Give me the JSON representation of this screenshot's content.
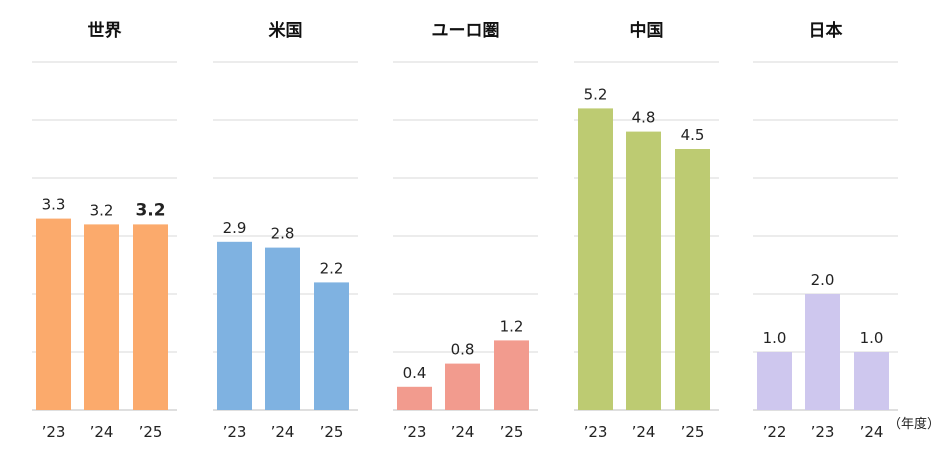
{
  "chart_data": [
    {
      "type": "bar",
      "title": "世界",
      "categories": [
        "’23",
        "’24",
        "’25"
      ],
      "values": [
        3.3,
        3.2,
        3.2
      ],
      "value_labels": [
        "3.3",
        "3.2",
        "3.2"
      ],
      "highlight_index": 2,
      "color": "#FBAA6C",
      "highlight_label_color": "#E8141B",
      "ylim": [
        0,
        6
      ],
      "grid": true
    },
    {
      "type": "bar",
      "title": "米国",
      "categories": [
        "’23",
        "’24",
        "’25"
      ],
      "values": [
        2.9,
        2.8,
        2.2
      ],
      "value_labels": [
        "2.9",
        "2.8",
        "2.2"
      ],
      "color": "#7FB2E1",
      "ylim": [
        0,
        6
      ],
      "grid": true
    },
    {
      "type": "bar",
      "title": "ユーロ圏",
      "categories": [
        "’23",
        "’24",
        "’25"
      ],
      "values": [
        0.4,
        0.8,
        1.2
      ],
      "value_labels": [
        "0.4",
        "0.8",
        "1.2"
      ],
      "color": "#F29B8E",
      "ylim": [
        0,
        6
      ],
      "grid": true
    },
    {
      "type": "bar",
      "title": "中国",
      "categories": [
        "’23",
        "’24",
        "’25"
      ],
      "values": [
        5.2,
        4.8,
        4.5
      ],
      "value_labels": [
        "5.2",
        "4.8",
        "4.5"
      ],
      "color": "#BDCB72",
      "ylim": [
        0,
        6
      ],
      "grid": true
    },
    {
      "type": "bar",
      "title": "日本",
      "categories": [
        "’22",
        "’23",
        "’24"
      ],
      "values": [
        1.0,
        2.0,
        1.0
      ],
      "value_labels": [
        "1.0",
        "2.0",
        "1.0"
      ],
      "color": "#CEC7EE",
      "ylim": [
        0,
        6
      ],
      "grid": true
    }
  ],
  "unit_label": "（年度）"
}
